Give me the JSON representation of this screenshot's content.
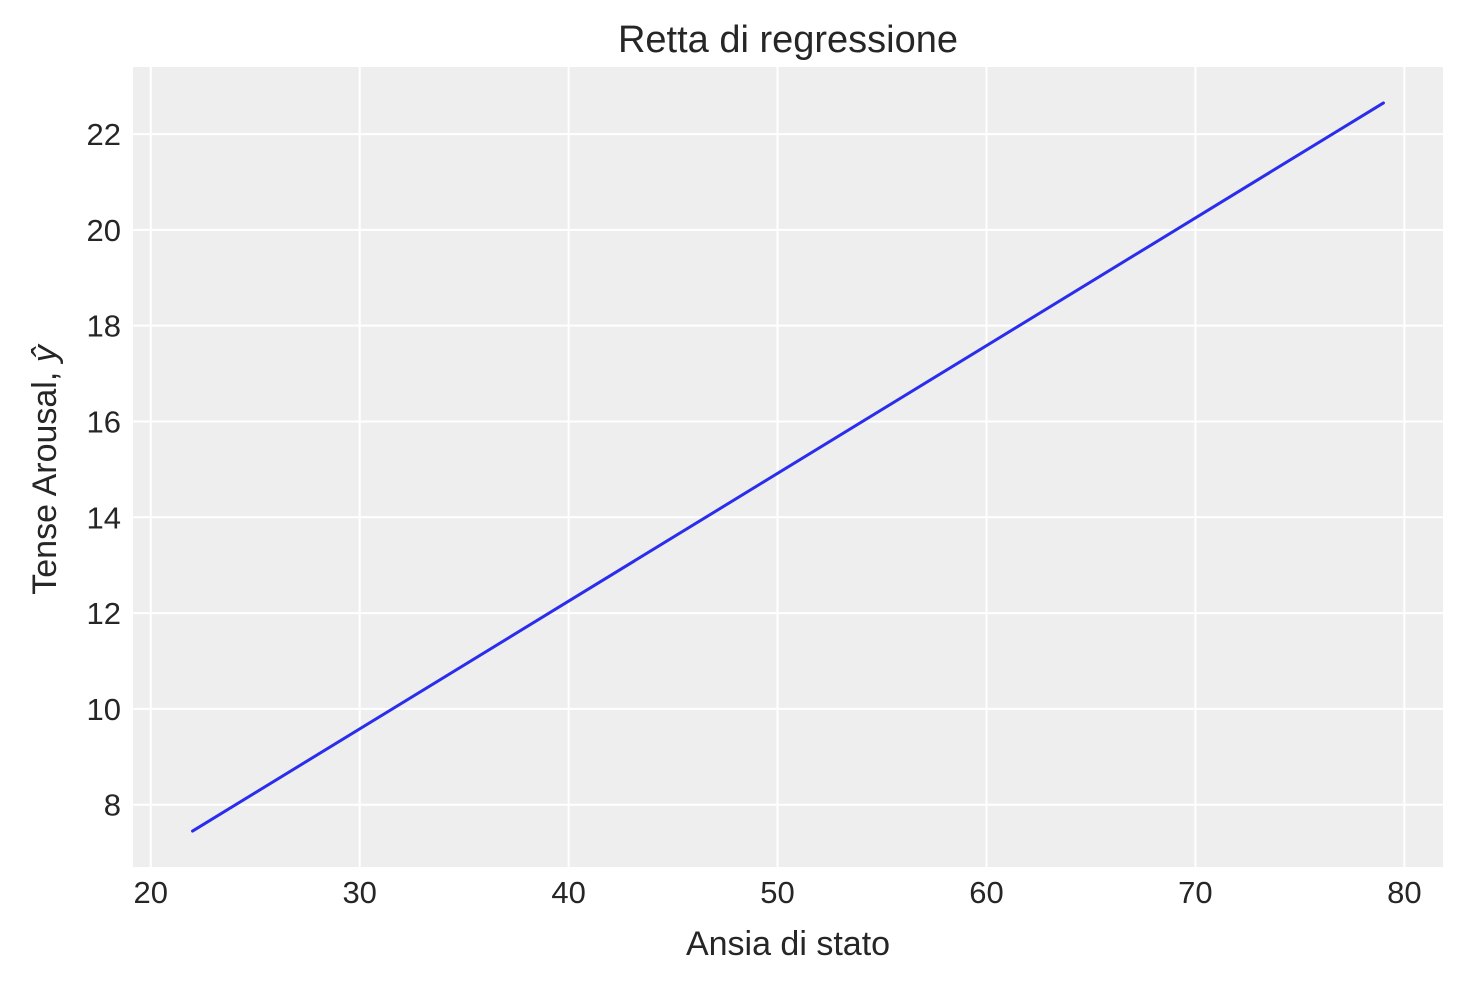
{
  "chart_data": {
    "type": "line",
    "title": "Retta di regressione",
    "xlabel": "Ansia di stato",
    "ylabel": "Tense Arousal, ",
    "ylabel_symbol": "ŷ",
    "xlim": [
      19.15,
      81.85
    ],
    "ylim": [
      6.7,
      23.4
    ],
    "x_ticks": [
      20,
      30,
      40,
      50,
      60,
      70,
      80
    ],
    "y_ticks": [
      8,
      10,
      12,
      14,
      16,
      18,
      20,
      22
    ],
    "grid": true,
    "series": [
      {
        "color": "#2a2eec",
        "x": [
          22,
          79
        ],
        "y": [
          7.45,
          22.65
        ]
      }
    ]
  }
}
